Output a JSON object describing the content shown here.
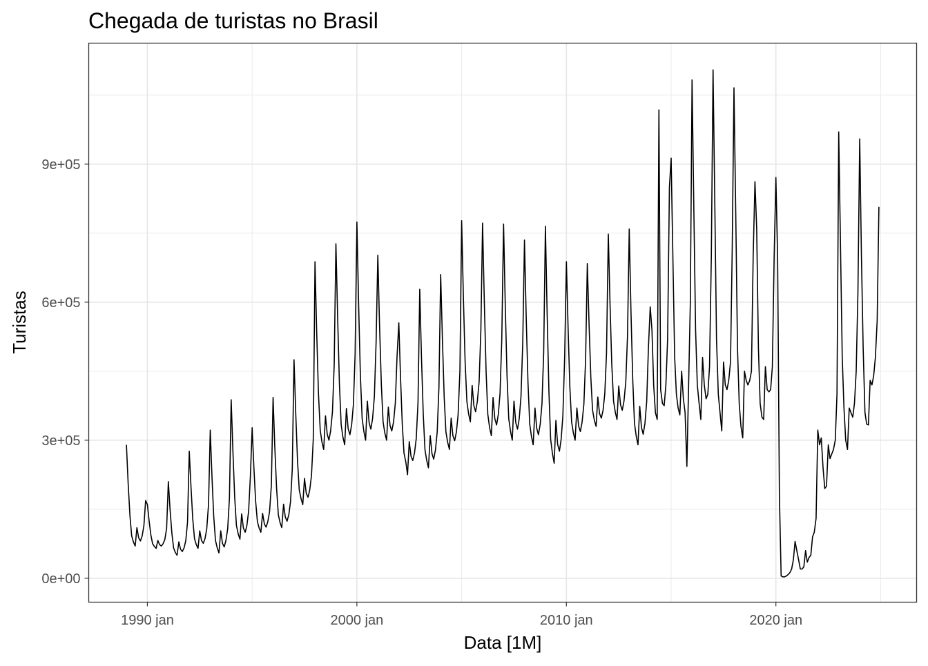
{
  "chart_data": {
    "type": "line",
    "title": "Chegada de turistas no Brasil",
    "xlabel": "Data [1M]",
    "ylabel": "Turistas",
    "x_start": "1989-01",
    "frequency": "monthly",
    "x_ticks": [
      "1990 jan",
      "2000 jan",
      "2010 jan",
      "2020 jan"
    ],
    "y_ticks": [
      "0e+00",
      "3e+05",
      "6e+05",
      "9e+05"
    ],
    "y_tick_values": [
      0,
      300000,
      600000,
      900000
    ],
    "ylim": [
      -52000,
      1163000
    ],
    "grid": true,
    "line_color": "#000000",
    "series": [
      {
        "name": "Turistas",
        "values_thousands": [
          290,
          206,
          136,
          92,
          79,
          70,
          110,
          88,
          81,
          92,
          114,
          169,
          160,
          124,
          94,
          75,
          69,
          65,
          82,
          73,
          70,
          75,
          84,
          108,
          210,
          149,
          98,
          66,
          56,
          50,
          79,
          63,
          58,
          66,
          82,
          122,
          276,
          196,
          128,
          86,
          73,
          65,
          103,
          82,
          76,
          86,
          107,
          160,
          322,
          221,
          135,
          82,
          66,
          55,
          103,
          76,
          68,
          82,
          108,
          175,
          388,
          273,
          176,
          115,
          97,
          85,
          140,
          109,
          100,
          115,
          146,
          221,
          327,
          241,
          168,
          123,
          109,
          100,
          141,
          118,
          111,
          123,
          145,
          202,
          393,
          285,
          195,
          138,
          121,
          110,
          161,
          133,
          124,
          138,
          167,
          237,
          475,
          355,
          255,
          192,
          173,
          160,
          217,
          185,
          176,
          192,
          223,
          302,
          688,
          533,
          402,
          321,
          296,
          280,
          353,
          313,
          300,
          321,
          362,
          464,
          727,
          561,
          421,
          334,
          307,
          290,
          369,
          325,
          312,
          334,
          377,
          487,
          774,
          594,
          442,
          347,
          319,
          300,
          385,
          338,
          324,
          347,
          395,
          513,
          702,
          549,
          421,
          340,
          316,
          300,
          372,
          332,
          320,
          340,
          380,
          481,
          555,
          435,
          335,
          272,
          253,
          225,
          297,
          265,
          256,
          272,
          303,
          382,
          628,
          481,
          356,
          279,
          256,
          240,
          310,
          271,
          259,
          279,
          318,
          415,
          660,
          516,
          394,
          318,
          295,
          280,
          348,
          310,
          299,
          318,
          356,
          451,
          777,
          611,
          471,
          384,
          357,
          340,
          419,
          375,
          362,
          384,
          427,
          537,
          772,
          596,
          449,
          356,
          328,
          310,
          393,
          347,
          333,
          356,
          402,
          518,
          770,
          591,
          441,
          347,
          319,
          300,
          385,
          338,
          324,
          347,
          394,
          512,
          735,
          566,
          424,
          335,
          308,
          290,
          370,
          326,
          312,
          335,
          379,
          490,
          765,
          569,
          405,
          302,
          271,
          250,
          343,
          291,
          276,
          302,
          353,
          482,
          688,
          541,
          416,
          339,
          316,
          300,
          370,
          331,
          319,
          339,
          378,
          475,
          684,
          549,
          436,
          365,
          344,
          330,
          394,
          358,
          348,
          365,
          401,
          489,
          748,
          595,
          466,
          385,
          361,
          345,
          418,
          377,
          365,
          385,
          426,
          526,
          759,
          581,
          431,
          337,
          309,
          290,
          374,
          328,
          313,
          337,
          384,
          501,
          590,
          540,
          420,
          360,
          345,
          1018,
          410,
          380,
          375,
          420,
          520,
          850,
          913,
          700,
          480,
          400,
          370,
          355,
          450,
          390,
          360,
          243,
          420,
          600,
          1083,
          800,
          540,
          420,
          380,
          345,
          480,
          420,
          390,
          400,
          460,
          700,
          1105,
          820,
          520,
          400,
          360,
          320,
          470,
          420,
          410,
          430,
          470,
          720,
          1066,
          790,
          500,
          380,
          330,
          305,
          450,
          430,
          420,
          430,
          450,
          700,
          862,
          760,
          500,
          380,
          350,
          345,
          460,
          410,
          405,
          410,
          460,
          700,
          871,
          700,
          180,
          5,
          3,
          3,
          5,
          8,
          12,
          20,
          40,
          80,
          60,
          40,
          20,
          20,
          25,
          60,
          35,
          45,
          50,
          90,
          100,
          130,
          322,
          290,
          305,
          240,
          195,
          200,
          290,
          260,
          270,
          280,
          300,
          400,
          970,
          720,
          480,
          370,
          300,
          280,
          370,
          360,
          350,
          380,
          450,
          620,
          955,
          700,
          500,
          360,
          335,
          333,
          430,
          420,
          440,
          480,
          560,
          807
        ]
      }
    ]
  }
}
